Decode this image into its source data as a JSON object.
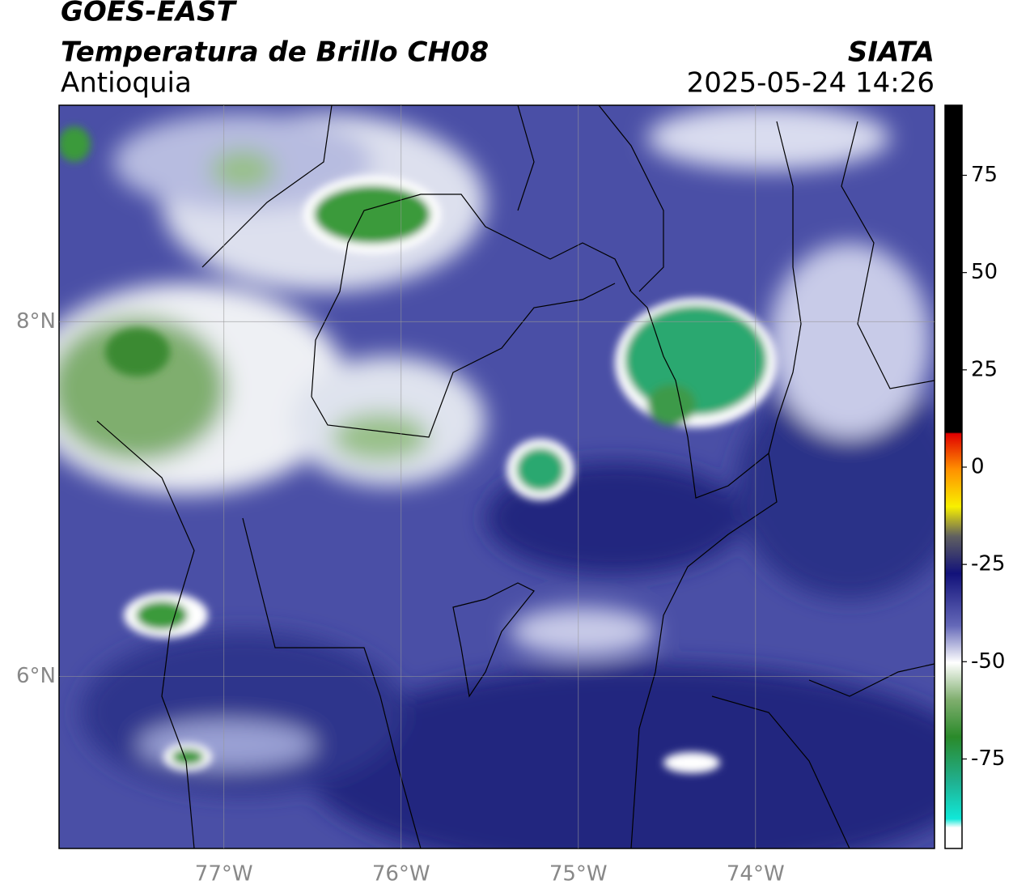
{
  "header": {
    "satellite": "GOES-EAST",
    "title": "Temperatura de Brillo CH08",
    "region": "Antioquia",
    "source": "SIATA",
    "datetime": "2025-05-24 14:26"
  },
  "map": {
    "xlim": [
      -77.93,
      -72.99
    ],
    "ylim": [
      5.03,
      9.22
    ],
    "xticks": [
      {
        "value": -77,
        "label": "77°W"
      },
      {
        "value": -76,
        "label": "76°W"
      },
      {
        "value": -75,
        "label": "75°W"
      },
      {
        "value": -74,
        "label": "74°W"
      }
    ],
    "yticks": [
      {
        "value": 6,
        "label": "6°N"
      },
      {
        "value": 8,
        "label": "8°N"
      }
    ],
    "grid": true
  },
  "colorbar": {
    "lim": [
      -98,
      93
    ],
    "ticks": [
      -75,
      -50,
      -25,
      0,
      25,
      50,
      75
    ]
  }
}
